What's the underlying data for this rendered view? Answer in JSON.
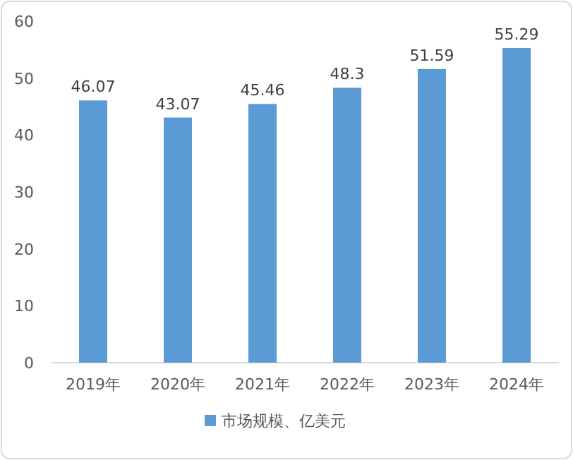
{
  "chart_data": {
    "type": "bar",
    "categories": [
      "2019年",
      "2020年",
      "2021年",
      "2022年",
      "2023年",
      "2024年"
    ],
    "series": [
      {
        "name": "市场规模、亿美元",
        "color": "#5b9bd5",
        "values": [
          46.07,
          43.07,
          45.46,
          48.3,
          51.59,
          55.29
        ]
      }
    ],
    "ylim": [
      0,
      60
    ],
    "yticks": [
      0,
      10,
      20,
      30,
      40,
      50,
      60
    ],
    "data_labels": true,
    "legend": "bottom"
  }
}
